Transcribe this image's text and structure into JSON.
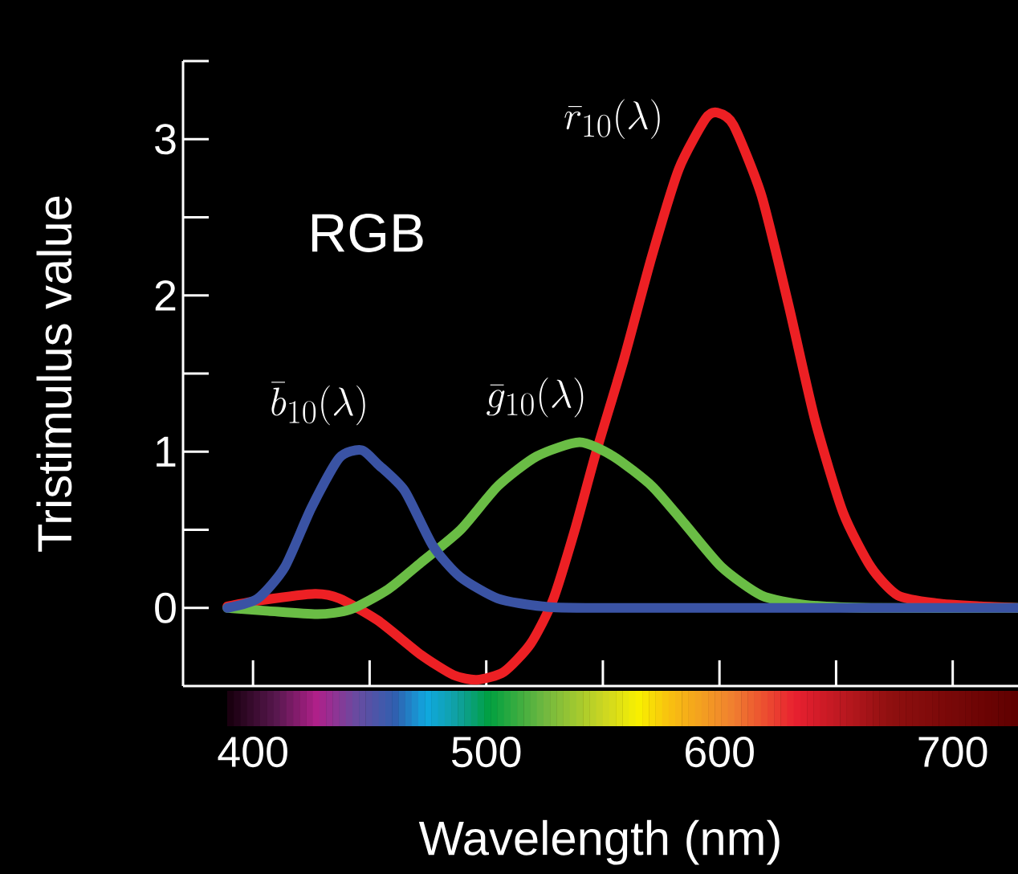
{
  "chart_data": {
    "type": "line",
    "xlabel": "Wavelength (nm)",
    "ylabel": "Tristimulus value",
    "annotations": [
      "RGB"
    ],
    "xlim": [
      370,
      728
    ],
    "ylim": [
      -0.5,
      3.5
    ],
    "xticks": [
      400,
      {
        "value": 450,
        "label": null
      },
      500,
      {
        "value": 550,
        "label": null
      },
      600,
      {
        "value": 650,
        "label": null
      },
      700
    ],
    "yticks": [
      0,
      {
        "value": 0.5,
        "label": null
      },
      1,
      {
        "value": 1.5,
        "label": null
      },
      2,
      {
        "value": 2.5,
        "label": null
      },
      3,
      {
        "value": 3.5,
        "label": null
      }
    ],
    "series": [
      {
        "name": "\\bar{r}_{10}(\\lambda)",
        "color": "#ed2024",
        "x": [
          389,
          404,
          426.5,
          437,
          453.5,
          472,
          486,
          496,
          507.5,
          519,
          528.6,
          538,
          547,
          559,
          571,
          582.6,
          594,
          599,
          606,
          618,
          629.6,
          641,
          653,
          665,
          676.5,
          693,
          712,
          728
        ],
        "values": [
          0.01,
          0.05,
          0.09,
          0.06,
          -0.08,
          -0.3,
          -0.43,
          -0.46,
          -0.41,
          -0.23,
          0.05,
          0.5,
          0.99,
          1.59,
          2.25,
          2.81,
          3.13,
          3.17,
          3.09,
          2.64,
          1.94,
          1.2,
          0.61,
          0.26,
          0.08,
          0.03,
          0.01,
          0.0
        ]
      },
      {
        "name": "\\bar{g}_{10}(\\lambda)",
        "color": "#6abd45",
        "x": [
          389,
          406.6,
          427.7,
          441.8,
          458,
          472,
          489,
          505,
          521.6,
          540,
          554.5,
          571,
          585,
          601,
          618,
          636.6,
          665,
          728
        ],
        "values": [
          0.0,
          -0.02,
          -0.04,
          -0.01,
          0.12,
          0.29,
          0.5,
          0.78,
          0.97,
          1.06,
          0.97,
          0.78,
          0.54,
          0.26,
          0.08,
          0.02,
          0.0,
          0.0
        ]
      },
      {
        "name": "\\bar{b}_{10}(\\lambda)",
        "color": "#3a53a4",
        "x": [
          389,
          402,
          413.6,
          425,
          437,
          446.5,
          453.5,
          465,
          477,
          488.7,
          505,
          524,
          547,
          728
        ],
        "values": [
          0.0,
          0.06,
          0.26,
          0.64,
          0.96,
          1.01,
          0.92,
          0.75,
          0.4,
          0.2,
          0.06,
          0.01,
          0.0,
          0.0
        ]
      }
    ]
  }
}
